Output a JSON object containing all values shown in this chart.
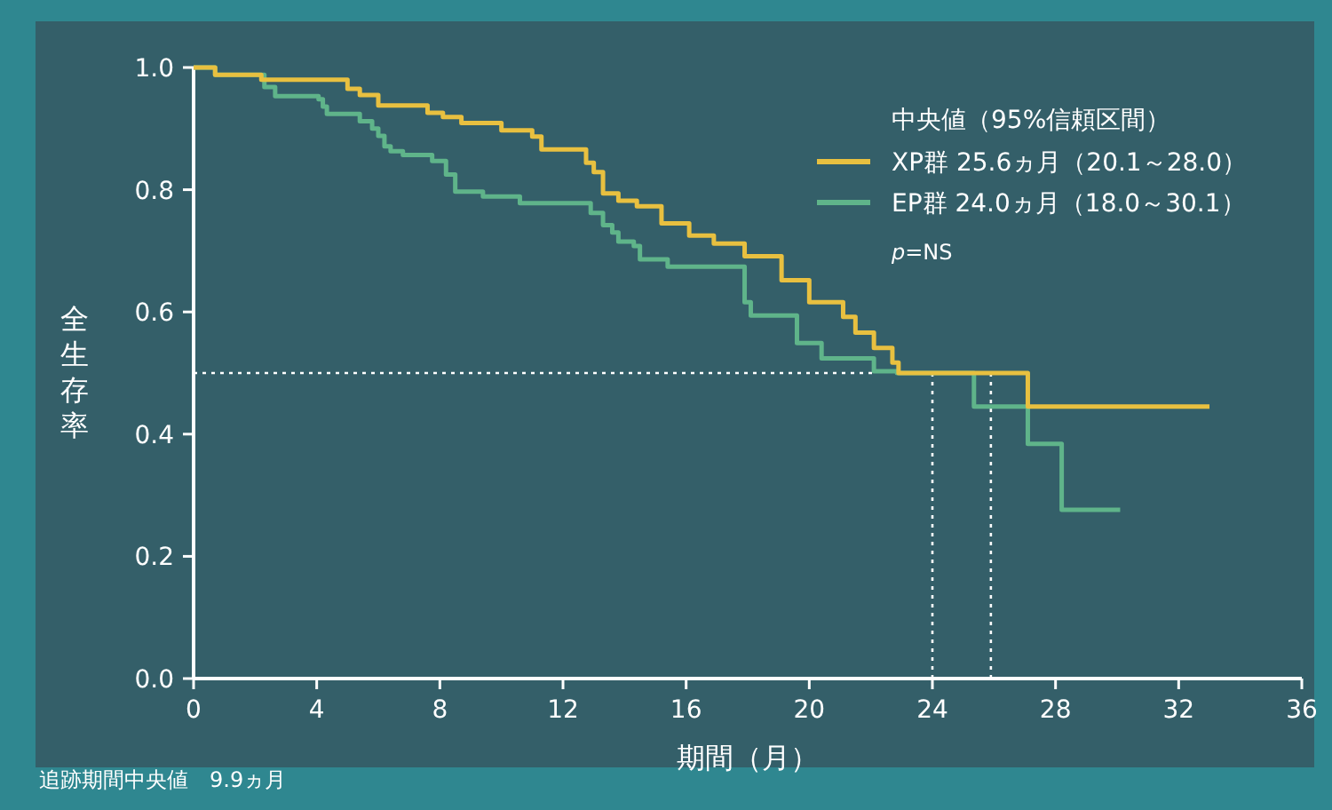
{
  "chart_data": {
    "type": "step",
    "legend_title": "中央値（95%信頼区間）",
    "xlabel": "期間（月）",
    "ylabel": "全生存率",
    "xlim": [
      0,
      36
    ],
    "xticks": [
      0,
      4,
      8,
      12,
      16,
      20,
      24,
      28,
      32,
      36
    ],
    "ylim": [
      0,
      1
    ],
    "yticks": [
      {
        "value": 0,
        "label": "0.0"
      },
      {
        "value": 0.2,
        "label": "0.2"
      },
      {
        "value": 0.4,
        "label": "0.4"
      },
      {
        "value": 0.6,
        "label": "0.6"
      },
      {
        "value": 0.8,
        "label": "0.8"
      },
      {
        "value": 1,
        "label": "1.0"
      }
    ],
    "grid": false,
    "legend": "top right",
    "line_style": "solid",
    "series": [
      {
        "name": "XP群 25.6ヵ月（20.1～28.0）",
        "color": "#e8c040",
        "x": [
          0,
          0.7,
          2.2,
          5.0,
          5.4,
          6.0,
          7.6,
          8.1,
          8.7,
          10.0,
          11.0,
          11.3,
          12.75,
          13.0,
          13.3,
          13.8,
          14.4,
          15.2,
          16.1,
          16.9,
          17.9,
          19.1,
          20.0,
          21.1,
          21.5,
          22.1,
          22.7,
          22.9,
          27.1,
          33.0
        ],
        "values": [
          1.0,
          0.988,
          0.98,
          0.965,
          0.955,
          0.938,
          0.926,
          0.919,
          0.909,
          0.897,
          0.887,
          0.866,
          0.844,
          0.829,
          0.794,
          0.782,
          0.773,
          0.745,
          0.725,
          0.712,
          0.691,
          0.652,
          0.616,
          0.592,
          0.566,
          0.541,
          0.517,
          0.5,
          0.445,
          0.445
        ]
      },
      {
        "name": "EP群 24.0ヵ月（18.0～30.1）",
        "color": "#5fb48a",
        "x": [
          0,
          0.7,
          2.3,
          2.65,
          4.06,
          4.2,
          4.33,
          5.4,
          5.8,
          6.0,
          6.2,
          6.4,
          6.8,
          7.75,
          8.2,
          8.5,
          9.4,
          10.6,
          12.9,
          13.3,
          13.6,
          13.8,
          14.3,
          14.5,
          15.4,
          17.9,
          18.1,
          19.6,
          20.4,
          22.1,
          22.85,
          25.35,
          27.1,
          28.2,
          30.1
        ],
        "values": [
          1.0,
          0.988,
          0.968,
          0.953,
          0.948,
          0.936,
          0.924,
          0.912,
          0.9,
          0.888,
          0.871,
          0.863,
          0.857,
          0.847,
          0.825,
          0.797,
          0.789,
          0.778,
          0.762,
          0.742,
          0.73,
          0.715,
          0.708,
          0.686,
          0.674,
          0.616,
          0.594,
          0.549,
          0.524,
          0.503,
          0.5,
          0.445,
          0.384,
          0.276,
          0.276
        ]
      }
    ],
    "ref_lines": [
      {
        "axis": "y",
        "value": 0.5,
        "label": null,
        "line_style": "dotted",
        "color": "#ffffff"
      },
      {
        "axis": "x",
        "value": 24.0,
        "label": null,
        "line_style": "dotted",
        "color": "#ffffff"
      },
      {
        "axis": "x",
        "value": 25.9,
        "label": null,
        "line_style": "dotted",
        "color": "#ffffff"
      }
    ],
    "annotations": [
      "p=NS",
      "追跡期間中央値　9.9ヵ月"
    ]
  }
}
